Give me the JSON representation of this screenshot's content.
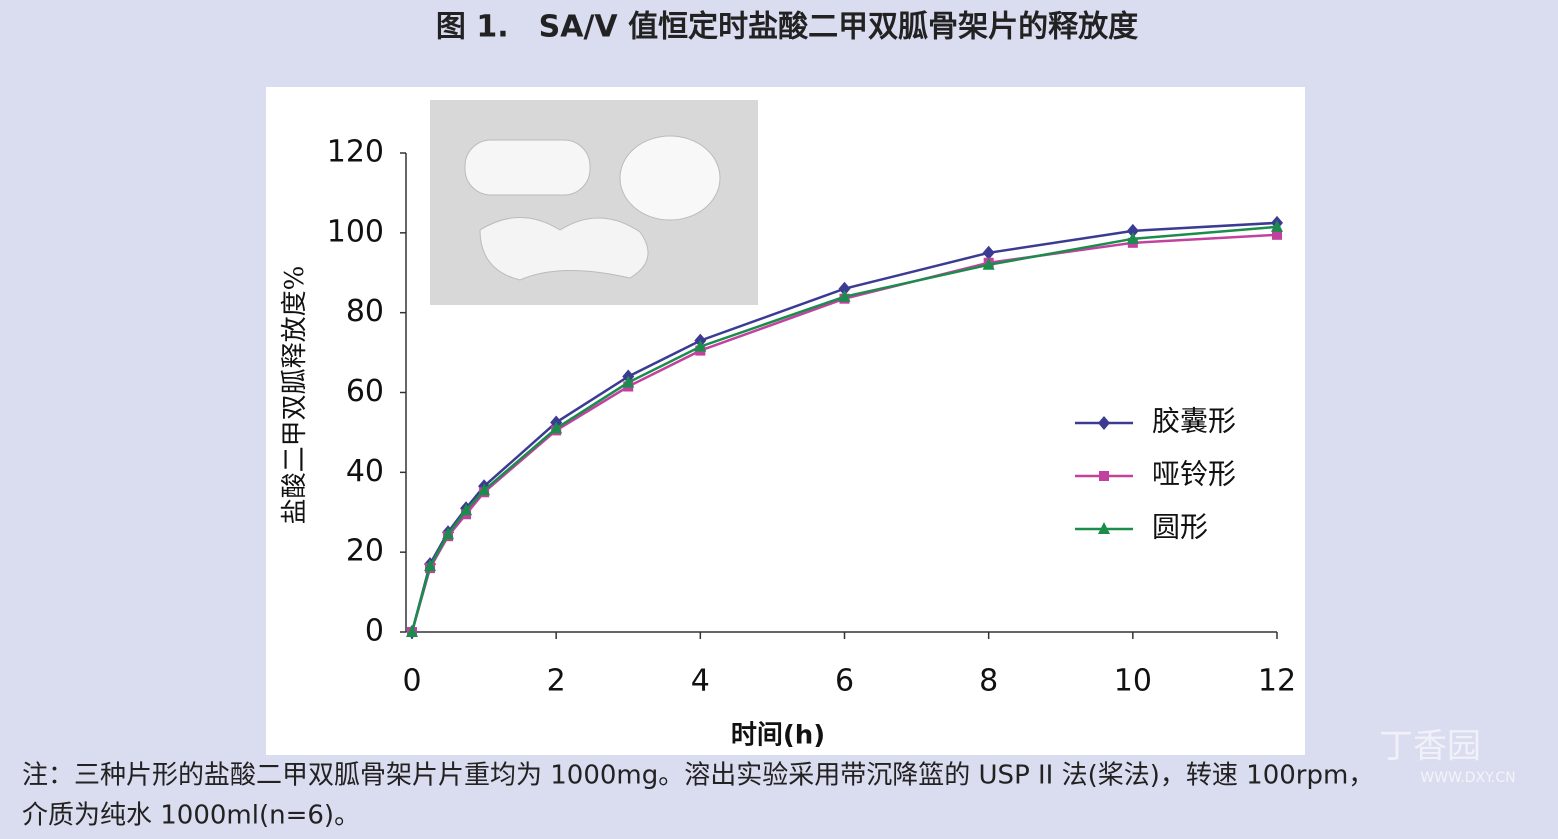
{
  "figure_title": "图 1.　SA/V 值恒定时盐酸二甲双胍骨架片的释放度",
  "chart_data": {
    "type": "line",
    "x_label": "时间(h)",
    "y_label": "盐酸二甲双胍释放度%",
    "x": [
      0,
      0.25,
      0.5,
      0.75,
      1,
      2,
      3,
      4,
      6,
      8,
      10,
      12
    ],
    "series": [
      {
        "name": "胶囊形",
        "color": "#3b3b93",
        "marker": "diamond",
        "values": [
          0,
          17,
          25,
          31,
          36.5,
          52.5,
          64,
          73,
          86,
          95,
          100.5,
          102.5
        ]
      },
      {
        "name": "哑铃形",
        "color": "#c2419f",
        "marker": "square",
        "values": [
          0,
          16,
          24,
          29.5,
          35,
          50.5,
          61.5,
          70.5,
          83.5,
          92.5,
          97.5,
          99.5
        ]
      },
      {
        "name": "圆形",
        "color": "#1b8c4c",
        "marker": "triangle",
        "values": [
          0,
          16.5,
          24.5,
          30.5,
          35.5,
          51,
          62.5,
          71.5,
          84,
          92,
          98.5,
          101.5
        ]
      }
    ],
    "xlim": [
      0,
      12
    ],
    "xticks": [
      0,
      2,
      4,
      6,
      8,
      10,
      12
    ],
    "ylim": [
      0,
      120
    ],
    "yticks": [
      0,
      20,
      40,
      60,
      80,
      100,
      120
    ],
    "legend": "right"
  },
  "note": [
    "注：三种片形的盐酸二甲双胍骨架片片重均为 1000mg。溶出实验采用带沉降篮的 USP II 法(桨法)，转速 100rpm，",
    "介质为纯水 1000ml(n=6)。"
  ],
  "watermark": [
    "丁香园",
    "WWW.DXY.CN"
  ]
}
